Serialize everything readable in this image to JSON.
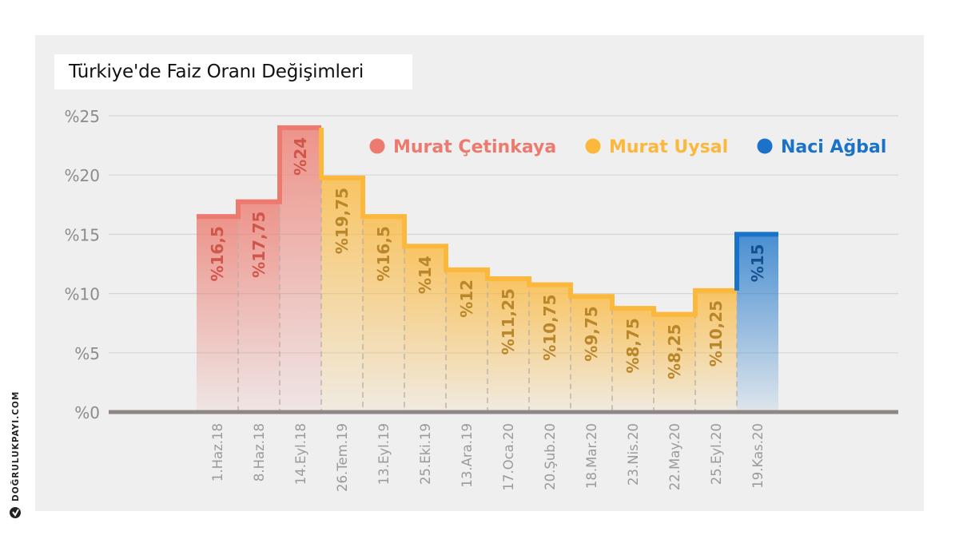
{
  "brand": {
    "name": "DOĞRULUKPAYI.COM",
    "icon": "dogrulukpayi-logo-icon"
  },
  "chart_data": {
    "type": "bar",
    "title": "Türkiye'de Faiz Oranı Değişimleri",
    "categories": [
      "1.Haz.18",
      "8.Haz.18",
      "14.Eyl.18",
      "26.Tem.19",
      "13.Eyl.19",
      "25.Eki.19",
      "13.Ara.19",
      "17.Oca.20",
      "20.Şub.20",
      "18.Mar.20",
      "23.Nis.20",
      "22.May.20",
      "25.Eyl.20",
      "19.Kas.20"
    ],
    "values": [
      16.5,
      17.75,
      24,
      19.75,
      16.5,
      14,
      12,
      11.25,
      10.75,
      9.75,
      8.75,
      8.25,
      10.25,
      15
    ],
    "labels": [
      "%16,5",
      "%17,75",
      "%24",
      "%19,75",
      "%16,5",
      "%14",
      "%12",
      "%11,25",
      "%10,75",
      "%9,75",
      "%8,75",
      "%8,25",
      "%10,25",
      "%15"
    ],
    "group_of_point": [
      0,
      0,
      0,
      1,
      1,
      1,
      1,
      1,
      1,
      1,
      1,
      1,
      1,
      2
    ],
    "groups": [
      {
        "name": "Murat Çetinkaya",
        "color": "#ec7a6e",
        "label_color": "#d0554b"
      },
      {
        "name": "Murat Uysal",
        "color": "#fbb83c",
        "label_color": "#b9862a"
      },
      {
        "name": "Naci Ağbal",
        "color": "#1a73c9",
        "label_color": "#14508f"
      }
    ],
    "ylim": [
      0,
      25
    ],
    "yticks": [
      0,
      5,
      10,
      15,
      20,
      25
    ],
    "ytick_labels": [
      "%0",
      "%5",
      "%10",
      "%15",
      "%20",
      "%25"
    ],
    "legend_position": "top-right",
    "grid": true
  }
}
